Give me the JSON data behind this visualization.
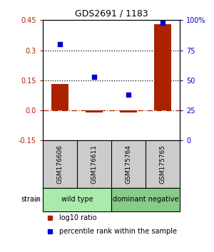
{
  "title": "GDS2691 / 1183",
  "samples": [
    "GSM176606",
    "GSM176611",
    "GSM175764",
    "GSM175765"
  ],
  "log10_ratio": [
    0.13,
    -0.01,
    -0.01,
    0.43
  ],
  "percentile_rank": [
    80,
    53,
    38,
    98
  ],
  "bar_color": "#aa2200",
  "dot_color": "#0000cc",
  "ylim_left": [
    -0.15,
    0.45
  ],
  "ylim_right": [
    0,
    100
  ],
  "yticks_left": [
    -0.15,
    0.0,
    0.15,
    0.3,
    0.45
  ],
  "yticks_right": [
    0,
    25,
    50,
    75,
    100
  ],
  "ytick_labels_right": [
    "0",
    "25",
    "50",
    "75",
    "100%"
  ],
  "hlines": [
    0.15,
    0.3
  ],
  "hline_zero": 0.0,
  "groups": [
    {
      "label": "wild type",
      "samples": [
        0,
        1
      ],
      "color": "#aaeaaa"
    },
    {
      "label": "dominant negative",
      "samples": [
        2,
        3
      ],
      "color": "#88cc88"
    }
  ],
  "strain_label": "strain",
  "legend_bar_label": "log10 ratio",
  "legend_dot_label": "percentile rank within the sample",
  "bar_width": 0.5,
  "sample_box_color": "#cccccc",
  "bg_color": "#ffffff"
}
